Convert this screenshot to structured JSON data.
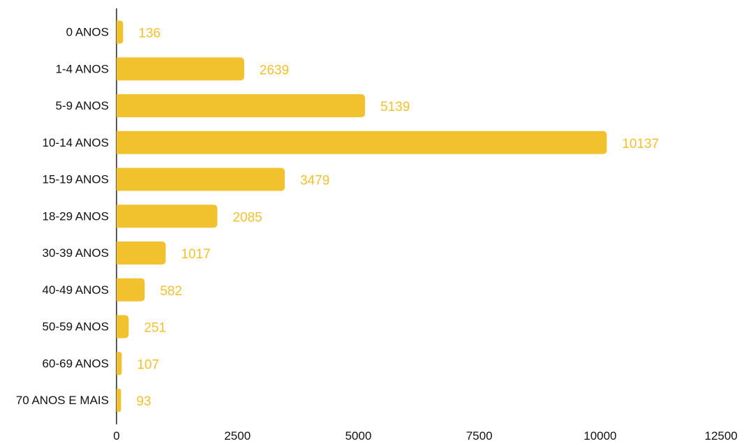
{
  "chart_data": {
    "type": "bar",
    "orientation": "horizontal",
    "categories": [
      "0 ANOS",
      "1-4 ANOS",
      "5-9 ANOS",
      "10-14 ANOS",
      "15-19 ANOS",
      "18-29 ANOS",
      "30-39 ANOS",
      "40-49 ANOS",
      "50-59 ANOS",
      "60-69 ANOS",
      "70 ANOS E MAIS"
    ],
    "values": [
      136,
      2639,
      5139,
      10137,
      3479,
      2085,
      1017,
      582,
      251,
      107,
      93
    ],
    "value_labels": [
      "136",
      "2639",
      "5139",
      "10137",
      "3479",
      "2085",
      "1017",
      "582",
      "251",
      "107",
      "93"
    ],
    "xlim": [
      0,
      12500
    ],
    "xticks": [
      0,
      2500,
      5000,
      7500,
      10000,
      12500
    ],
    "xtick_labels": [
      "0",
      "2500",
      "5000",
      "7500",
      "10000",
      "12500"
    ],
    "grid": false,
    "legend": "none",
    "bar_color": "#F2C12E",
    "label_color": "#F2C12E",
    "axis_color": "#222222",
    "title": "",
    "xlabel": "",
    "ylabel": ""
  }
}
